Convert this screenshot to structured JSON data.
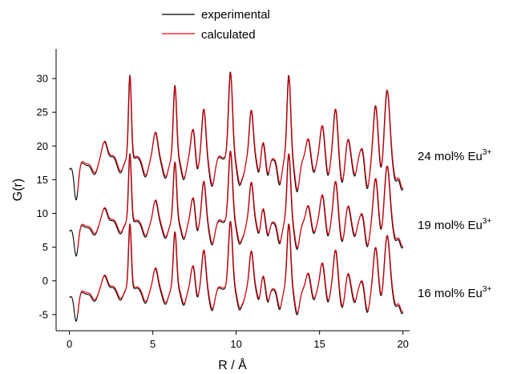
{
  "chart_data": {
    "type": "line",
    "title": "",
    "xlabel": "R / Å",
    "ylabel": "G(r)",
    "xlim": [
      -0.8,
      20.4
    ],
    "ylim": [
      -7.4,
      34.4
    ],
    "x_ticks": [
      0,
      5,
      10,
      15,
      20
    ],
    "x_tick_labels": [
      "0",
      "5",
      "10",
      "15",
      "20"
    ],
    "y_ticks": [
      -5,
      0,
      5,
      10,
      15,
      20,
      25,
      30
    ],
    "y_tick_labels": [
      "-5",
      "0",
      "5",
      "10",
      "15",
      "20",
      "25",
      "30"
    ],
    "grid": false,
    "legend": {
      "placement": "top-center",
      "entries": [
        {
          "label": "experimental",
          "color": "#000000"
        },
        {
          "label": "calculated",
          "color": "#e8000b"
        }
      ]
    },
    "annotations": [
      {
        "text": "24 mol% Eu",
        "sup": "3+",
        "y": 18.5
      },
      {
        "text": "19 mol% Eu",
        "sup": "3+",
        "y": 8.3
      },
      {
        "text": "16 mol% Eu",
        "sup": "3+",
        "y": -1.8
      }
    ],
    "peaks": [
      {
        "x": 0.4,
        "a": -6.0,
        "w": 0.13
      },
      {
        "x": 1.0,
        "a": -0.8,
        "w": 0.2
      },
      {
        "x": 1.5,
        "a": -2.2,
        "w": 0.18
      },
      {
        "x": 2.1,
        "a": 2.6,
        "w": 0.16
      },
      {
        "x": 2.6,
        "a": 0.4,
        "w": 0.13
      },
      {
        "x": 3.05,
        "a": -2.0,
        "w": 0.16
      },
      {
        "x": 3.62,
        "a": 12.5,
        "w": 0.085
      },
      {
        "x": 4.05,
        "a": 0.3,
        "w": 0.12
      },
      {
        "x": 4.55,
        "a": -2.6,
        "w": 0.16
      },
      {
        "x": 5.15,
        "a": 4.0,
        "w": 0.14
      },
      {
        "x": 5.75,
        "a": -2.8,
        "w": 0.16
      },
      {
        "x": 6.32,
        "a": 11.0,
        "w": 0.1
      },
      {
        "x": 6.85,
        "a": -3.0,
        "w": 0.14
      },
      {
        "x": 7.4,
        "a": 4.5,
        "w": 0.13
      },
      {
        "x": 7.65,
        "a": -2.0,
        "w": 0.1
      },
      {
        "x": 8.05,
        "a": 7.5,
        "w": 0.12
      },
      {
        "x": 8.55,
        "a": -4.0,
        "w": 0.15
      },
      {
        "x": 8.95,
        "a": 0.4,
        "w": 0.12
      },
      {
        "x": 9.65,
        "a": 13.0,
        "w": 0.12
      },
      {
        "x": 10.2,
        "a": -3.8,
        "w": 0.14
      },
      {
        "x": 10.45,
        "a": -1.5,
        "w": 0.1
      },
      {
        "x": 10.9,
        "a": 7.3,
        "w": 0.12
      },
      {
        "x": 11.35,
        "a": -2.0,
        "w": 0.1
      },
      {
        "x": 11.6,
        "a": 2.5,
        "w": 0.1
      },
      {
        "x": 11.9,
        "a": -2.4,
        "w": 0.1
      },
      {
        "x": 12.3,
        "a": 0.0,
        "w": 0.1
      },
      {
        "x": 12.6,
        "a": -3.8,
        "w": 0.13
      },
      {
        "x": 13.15,
        "a": 12.5,
        "w": 0.11
      },
      {
        "x": 13.65,
        "a": -4.8,
        "w": 0.14
      },
      {
        "x": 14.3,
        "a": 3.0,
        "w": 0.13
      },
      {
        "x": 14.65,
        "a": -2.0,
        "w": 0.12
      },
      {
        "x": 15.15,
        "a": 5.0,
        "w": 0.13
      },
      {
        "x": 15.5,
        "a": -2.5,
        "w": 0.11
      },
      {
        "x": 15.95,
        "a": 7.5,
        "w": 0.13
      },
      {
        "x": 16.35,
        "a": -3.5,
        "w": 0.13
      },
      {
        "x": 16.7,
        "a": 3.0,
        "w": 0.12
      },
      {
        "x": 17.1,
        "a": -2.5,
        "w": 0.12
      },
      {
        "x": 17.55,
        "a": 1.8,
        "w": 0.14
      },
      {
        "x": 17.85,
        "a": -4.5,
        "w": 0.14
      },
      {
        "x": 18.35,
        "a": 8.0,
        "w": 0.13
      },
      {
        "x": 18.7,
        "a": -2.0,
        "w": 0.1
      },
      {
        "x": 19.05,
        "a": 10.3,
        "w": 0.15
      },
      {
        "x": 19.55,
        "a": -3.0,
        "w": 0.14
      },
      {
        "x": 19.95,
        "a": -4.5,
        "w": 0.16
      }
    ],
    "series": [
      {
        "name": "experimental",
        "curve": "24 mol% Eu3+",
        "color": "#000000",
        "offset": 18.0,
        "scale": 1.0,
        "peak_shift": 0.0,
        "x_start": 0.0
      },
      {
        "name": "calculated",
        "curve": "24 mol% Eu3+",
        "color": "#e8000b",
        "offset": 18.2,
        "scale": 0.97,
        "peak_shift": 0.02,
        "x_start": 0.5
      },
      {
        "name": "experimental",
        "curve": "19 mol% Eu3+",
        "color": "#000000",
        "offset": 8.6,
        "scale": 0.82,
        "peak_shift": 0.0,
        "x_start": 0.0
      },
      {
        "name": "calculated",
        "curve": "19 mol% Eu3+",
        "color": "#e8000b",
        "offset": 8.8,
        "scale": 0.8,
        "peak_shift": 0.02,
        "x_start": 0.5
      },
      {
        "name": "experimental",
        "curve": "16 mol% Eu3+",
        "color": "#000000",
        "offset": -1.3,
        "scale": 0.78,
        "peak_shift": 0.0,
        "x_start": 0.0
      },
      {
        "name": "calculated",
        "curve": "16 mol% Eu3+",
        "color": "#e8000b",
        "offset": -1.1,
        "scale": 0.76,
        "peak_shift": 0.02,
        "x_start": 0.5
      }
    ]
  }
}
